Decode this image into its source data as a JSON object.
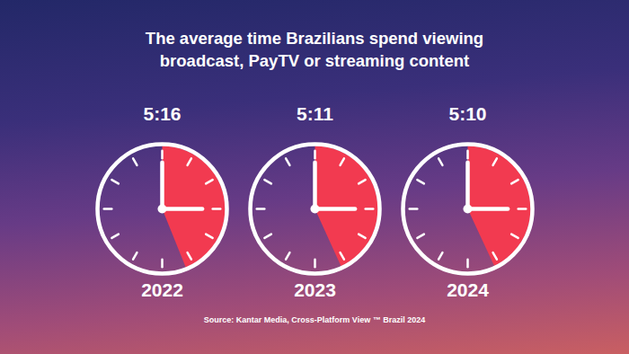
{
  "chart_data": {
    "type": "clock",
    "title": "The average time Brazilians spend viewing broadcast, PayTV or streaming content",
    "caption": "Source: Kantar Media, Cross-Platform View ™ Brazil 2024",
    "categories": [
      "2022",
      "2023",
      "2024"
    ],
    "values": [
      316,
      311,
      310
    ],
    "value_labels": [
      "5:16",
      "5:11",
      "5:10"
    ],
    "data_labels": true,
    "color": "#f23a50",
    "ylim": [
      0,
      720
    ],
    "yticks": [
      0,
      60,
      120,
      180,
      240,
      300,
      360,
      420,
      480,
      540,
      600,
      660
    ],
    "tick_labels": false
  }
}
